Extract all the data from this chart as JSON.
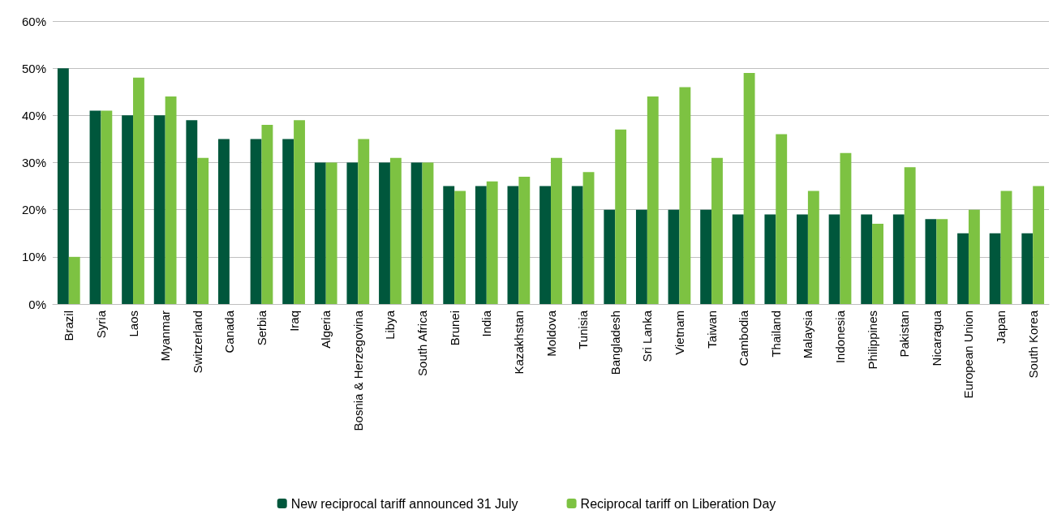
{
  "chart_data": {
    "type": "bar",
    "categories": [
      "Brazil",
      "Syria",
      "Laos",
      "Myanmar",
      "Switzerland",
      "Canada",
      "Serbia",
      "Iraq",
      "Algeria",
      "Bosnia & Herzegovina",
      "Libya",
      "South Africa",
      "Brunei",
      "India",
      "Kazakhstan",
      "Moldova",
      "Tunisia",
      "Bangladesh",
      "Sri Lanka",
      "Vietnam",
      "Taiwan",
      "Cambodia",
      "Thailand",
      "Malaysia",
      "Indonesia",
      "Philippines",
      "Pakistan",
      "Nicaragua",
      "European Union",
      "Japan",
      "South Korea"
    ],
    "series": [
      {
        "name": "New reciprocal tariff announced 31 July",
        "color": "#00573c",
        "values": [
          50,
          41,
          40,
          40,
          39,
          35,
          35,
          35,
          30,
          30,
          30,
          30,
          25,
          25,
          25,
          25,
          25,
          20,
          20,
          20,
          20,
          19,
          19,
          19,
          19,
          19,
          19,
          18,
          15,
          15,
          15
        ]
      },
      {
        "name": "Reciprocal tariff on Liberation Day",
        "color": "#7dc242",
        "values": [
          10,
          41,
          48,
          44,
          31,
          null,
          38,
          39,
          30,
          35,
          31,
          30,
          24,
          26,
          27,
          31,
          28,
          37,
          44,
          46,
          31,
          49,
          36,
          24,
          32,
          17,
          29,
          18,
          20,
          24,
          25
        ]
      }
    ],
    "ylim": [
      0,
      60
    ],
    "yticks": [
      {
        "value": 0,
        "label": "0%"
      },
      {
        "value": 10,
        "label": "10%"
      },
      {
        "value": 20,
        "label": "20%"
      },
      {
        "value": 30,
        "label": "30%"
      },
      {
        "value": 40,
        "label": "40%"
      },
      {
        "value": 50,
        "label": "50%"
      },
      {
        "value": 60,
        "label": "60%"
      }
    ],
    "grid": "y",
    "legend": "bottom"
  }
}
